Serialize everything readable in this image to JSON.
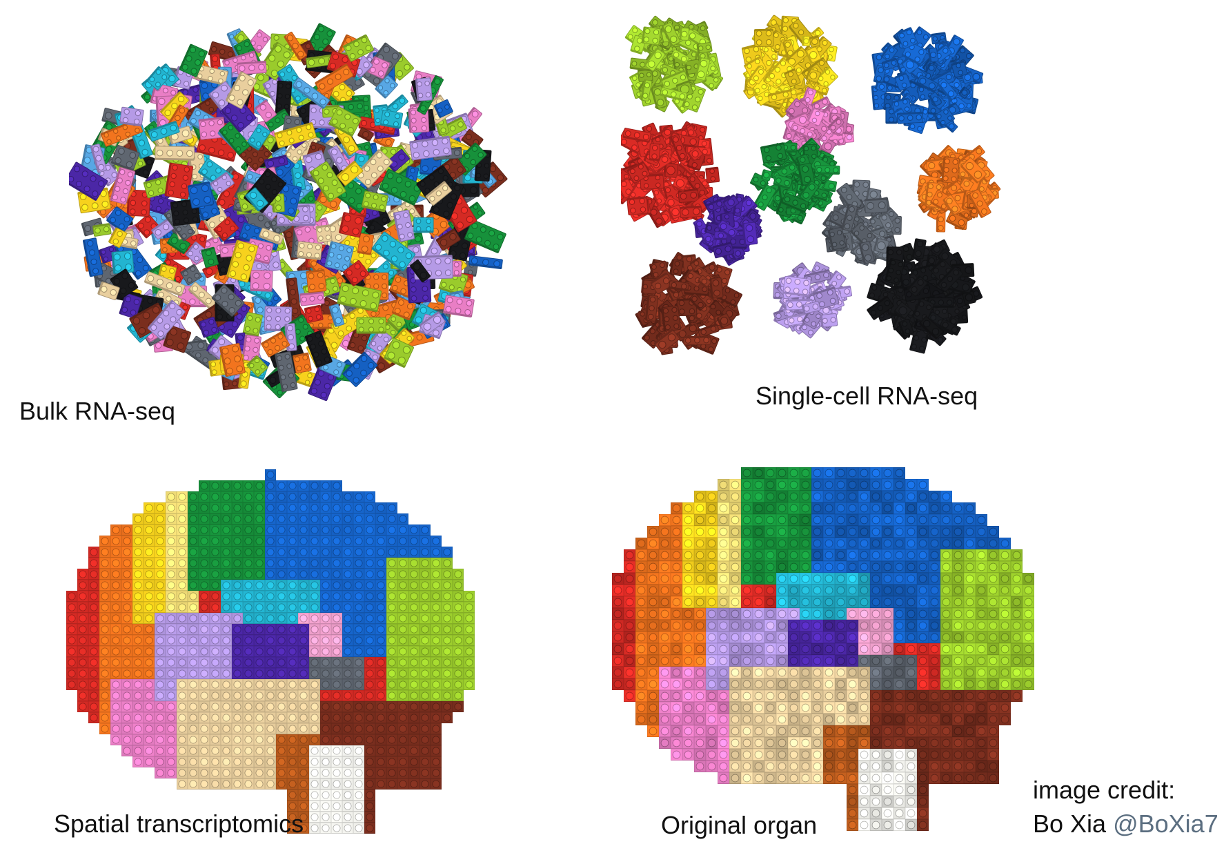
{
  "panels": {
    "bulk": {
      "caption": "Bulk RNA-seq"
    },
    "single_cell": {
      "caption": "Single-cell RNA-seq"
    },
    "spatial": {
      "caption": "Spatial transcriptomics"
    },
    "organ": {
      "caption": "Original organ"
    }
  },
  "credit": {
    "line1": "image credit:",
    "name": "Bo Xia",
    "handle": "@BoXia7"
  },
  "palette": {
    "red": "#d42a24",
    "orange": "#f2741e",
    "yellow": "#f7d21d",
    "light_yellow": "#f4df78",
    "green": "#17913b",
    "lime": "#9acb2c",
    "blue": "#1560c2",
    "light_blue": "#58a7e4",
    "cyan": "#23b4d0",
    "lavender": "#b59ae6",
    "pink": "#e97ec5",
    "light_pink": "#f3a2cf",
    "purple": "#4b27a6",
    "gray": "#5f6670",
    "tan": "#e9cf9e",
    "brown": "#7a2e1e",
    "dark_orange": "#b85a1d",
    "white": "#f7f7f2",
    "black": "#18191c"
  }
}
